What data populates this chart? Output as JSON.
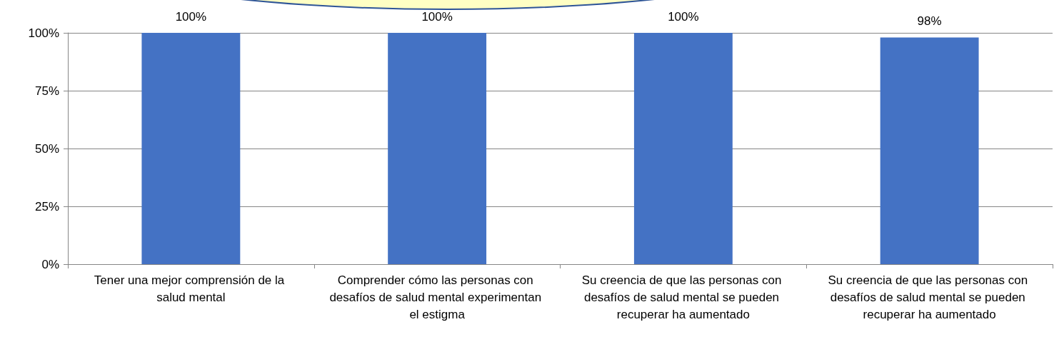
{
  "chart_data": {
    "type": "bar",
    "categories": [
      "Tener una mejor comprensión de la salud mental",
      "Comprender cómo las personas con desafíos de salud mental experimentan el estigma",
      "Su creencia de que las personas con desafíos de salud mental se pueden recuperar ha aumentado",
      "Su creencia de que las personas con desafíos de salud mental se pueden recuperar ha aumentado"
    ],
    "values": [
      100,
      100,
      100,
      98
    ],
    "value_labels": [
      "100%",
      "100%",
      "100%",
      "98%"
    ],
    "color": "#4472c4",
    "ylim": [
      0,
      100
    ],
    "yticks": [
      {
        "value": 0,
        "label": "0%"
      },
      {
        "value": 25,
        "label": "25%"
      },
      {
        "value": 50,
        "label": "50%"
      },
      {
        "value": 75,
        "label": "75%"
      },
      {
        "value": 100,
        "label": "100%"
      }
    ],
    "grid": "y"
  }
}
